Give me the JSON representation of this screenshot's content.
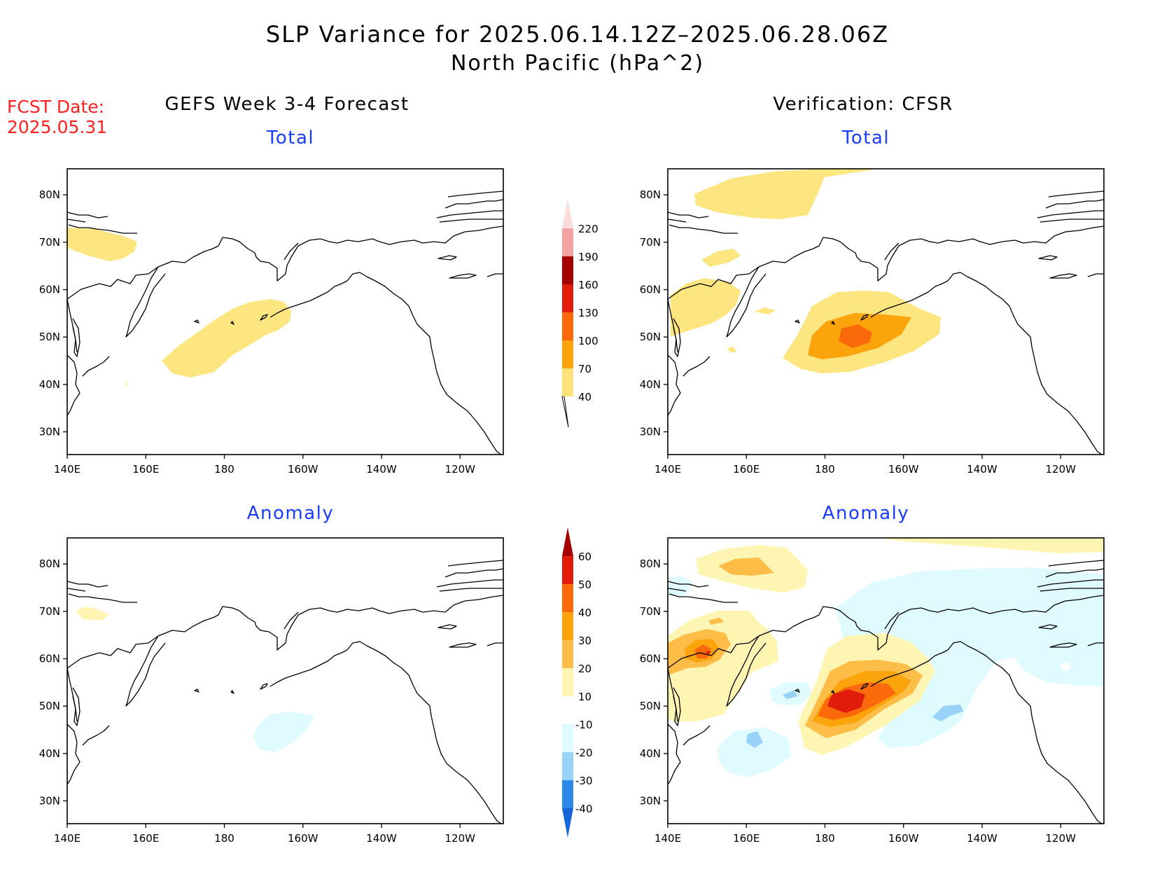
{
  "title": {
    "line1": "SLP Variance for 2025.06.14.12Z–2025.06.28.06Z",
    "line2": "North Pacific (hPa^2)"
  },
  "forecast_date": {
    "label": "FCST Date:",
    "value": "2025.05.31"
  },
  "columns": {
    "left": "GEFS Week 3-4 Forecast",
    "right": "Verification: CFSR"
  },
  "panel_titles": {
    "top": "Total",
    "bottom": "Anomaly"
  },
  "axes": {
    "lon_ticks": [
      "140E",
      "160E",
      "180",
      "160W",
      "140W",
      "120W"
    ],
    "lat_ticks": [
      "30N",
      "40N",
      "50N",
      "60N",
      "70N",
      "80N"
    ]
  },
  "colorbar_total": {
    "levels": [
      "40",
      "70",
      "100",
      "130",
      "160",
      "190",
      "220"
    ],
    "colors": [
      "#fde27a",
      "#fca40c",
      "#fb6a0a",
      "#e01c0a",
      "#a40000",
      "#f3a3a3",
      "#fcdcdc"
    ]
  },
  "colorbar_anomaly": {
    "levels": [
      "60",
      "50",
      "40",
      "30",
      "20",
      "10",
      "-10",
      "-20",
      "-30",
      "-40"
    ],
    "colors": [
      "#a40000",
      "#e01c0a",
      "#fb6a0a",
      "#fca40c",
      "#fdbd47",
      "#fff5b0",
      "#ffffff",
      "#dffbff",
      "#98d2f8",
      "#2b8ae8",
      "#1565d8"
    ]
  },
  "map_colors": {
    "yellow": "#fde57f",
    "light_yellow": "#fff5b3",
    "light_orange": "#fdbd47",
    "orange": "#fca40c",
    "dark_orange": "#fb6a0a",
    "red": "#e01c0a",
    "light_cyan": "#e0fbff",
    "light_blue": "#98d2f8"
  }
}
